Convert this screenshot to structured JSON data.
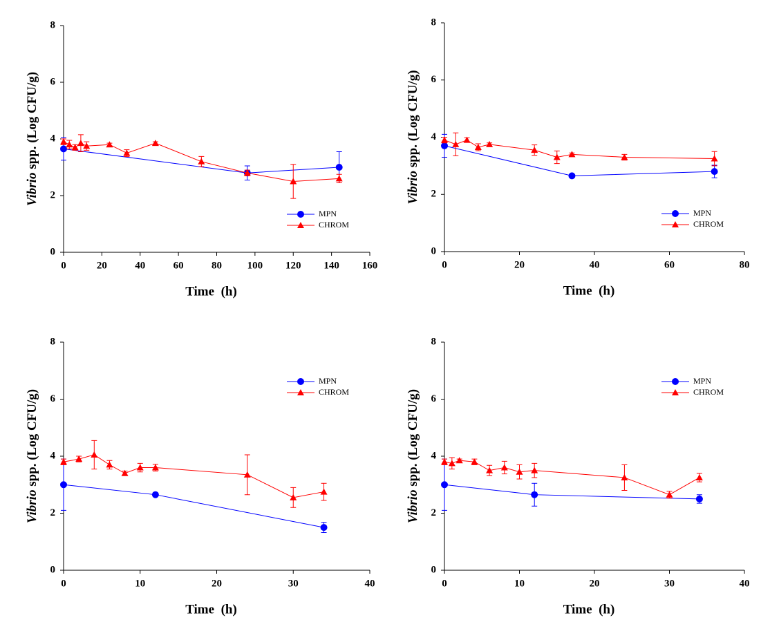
{
  "chart_data": [
    {
      "type": "line",
      "y_label": [
        "Vibrio",
        "spp. (Log CFU/g)"
      ],
      "x_label": "Time  (h)",
      "xlim": [
        0,
        160
      ],
      "xticks": [
        0,
        20,
        40,
        60,
        80,
        100,
        120,
        140,
        160
      ],
      "ylim": [
        0,
        8
      ],
      "yticks": [
        0,
        2,
        4,
        6,
        8
      ],
      "legend": "lower right",
      "series": [
        {
          "name": "MPN",
          "color": "#0000ff",
          "marker": "circle",
          "x": [
            0,
            96,
            144
          ],
          "values": [
            3.65,
            2.8,
            3.0
          ],
          "errors": [
            0.4,
            0.25,
            0.55
          ]
        },
        {
          "name": "CHROM",
          "color": "#ff0000",
          "marker": "triangle",
          "x": [
            0,
            3,
            6,
            9,
            12,
            24,
            33,
            48,
            72,
            96,
            120,
            144
          ],
          "values": [
            3.9,
            3.8,
            3.7,
            3.85,
            3.75,
            3.8,
            3.5,
            3.85,
            3.2,
            2.8,
            2.5,
            2.6
          ],
          "errors": [
            0.1,
            0.15,
            0.1,
            0.3,
            0.15,
            0.05,
            0.12,
            0.05,
            0.18,
            0.1,
            0.6,
            0.15
          ]
        }
      ]
    },
    {
      "type": "line",
      "y_label": [
        "Vibrio",
        "spp. (Log CFU/g)"
      ],
      "x_label": "Time  (h)",
      "xlim": [
        0,
        80
      ],
      "xticks": [
        0,
        20,
        40,
        60,
        80
      ],
      "ylim": [
        0,
        8
      ],
      "yticks": [
        0,
        2,
        4,
        6,
        8
      ],
      "legend": "lower right",
      "series": [
        {
          "name": "MPN",
          "color": "#0000ff",
          "marker": "circle",
          "x": [
            0,
            34,
            72
          ],
          "values": [
            3.7,
            2.65,
            2.8
          ],
          "errors": [
            0.4,
            0.05,
            0.22
          ]
        },
        {
          "name": "CHROM",
          "color": "#ff0000",
          "marker": "triangle",
          "x": [
            0,
            3,
            6,
            9,
            12,
            24,
            30,
            34,
            48,
            72
          ],
          "values": [
            3.9,
            3.75,
            3.9,
            3.65,
            3.75,
            3.55,
            3.3,
            3.4,
            3.3,
            3.25
          ],
          "errors": [
            0.1,
            0.4,
            0.08,
            0.12,
            0.05,
            0.18,
            0.22,
            0.05,
            0.1,
            0.25
          ]
        }
      ]
    },
    {
      "type": "line",
      "y_label": [
        "Vibrio",
        "spp. (Log CFU/g)"
      ],
      "x_label": "Time  (h)",
      "xlim": [
        0,
        40
      ],
      "xticks": [
        0,
        10,
        20,
        30,
        40
      ],
      "ylim": [
        0,
        8
      ],
      "yticks": [
        0,
        2,
        4,
        6,
        8
      ],
      "legend": "upper right",
      "series": [
        {
          "name": "MPN",
          "color": "#0000ff",
          "marker": "circle",
          "x": [
            0,
            12,
            34
          ],
          "values": [
            3.0,
            2.65,
            1.5
          ],
          "errors": [
            0.9,
            0.05,
            0.18
          ]
        },
        {
          "name": "CHROM",
          "color": "#ff0000",
          "marker": "triangle",
          "x": [
            0,
            2,
            4,
            6,
            8,
            10,
            12,
            24,
            30,
            34
          ],
          "values": [
            3.8,
            3.9,
            4.05,
            3.7,
            3.4,
            3.6,
            3.6,
            3.35,
            2.55,
            2.75
          ],
          "errors": [
            0.1,
            0.1,
            0.5,
            0.15,
            0.08,
            0.15,
            0.12,
            0.7,
            0.35,
            0.3
          ]
        }
      ]
    },
    {
      "type": "line",
      "y_label": [
        "Vibrio",
        "spp. (Log CFU/g)"
      ],
      "x_label": "Time  (h)",
      "xlim": [
        0,
        40
      ],
      "xticks": [
        0,
        10,
        20,
        30,
        40
      ],
      "ylim": [
        0,
        8
      ],
      "yticks": [
        0,
        2,
        4,
        6,
        8
      ],
      "legend": "upper right",
      "series": [
        {
          "name": "MPN",
          "color": "#0000ff",
          "marker": "circle",
          "x": [
            0,
            12,
            34
          ],
          "values": [
            3.0,
            2.65,
            2.5
          ],
          "errors": [
            0.9,
            0.4,
            0.15
          ]
        },
        {
          "name": "CHROM",
          "color": "#ff0000",
          "marker": "triangle",
          "x": [
            0,
            1,
            2,
            4,
            6,
            8,
            10,
            12,
            24,
            30,
            34
          ],
          "values": [
            3.8,
            3.75,
            3.85,
            3.8,
            3.5,
            3.6,
            3.45,
            3.5,
            3.25,
            2.65,
            3.25
          ],
          "errors": [
            0.1,
            0.2,
            0.05,
            0.1,
            0.18,
            0.22,
            0.25,
            0.25,
            0.45,
            0.12,
            0.15
          ]
        }
      ]
    }
  ]
}
